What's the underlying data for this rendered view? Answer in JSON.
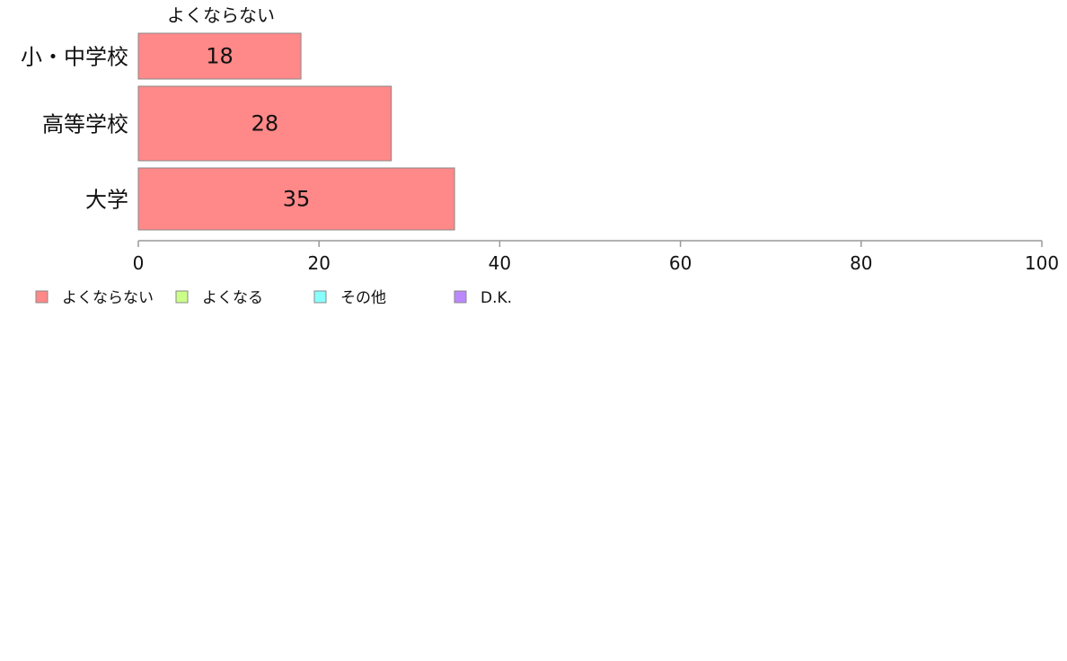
{
  "chart_data": {
    "type": "bar",
    "orientation": "horizontal",
    "stacked": true,
    "categories": [
      "小・中学校",
      "高等学校",
      "大学"
    ],
    "series": [
      {
        "name": "よくならない",
        "color": "#ff8888",
        "values": [
          18,
          28,
          35
        ]
      },
      {
        "name": "よくなる",
        "color": "#ccff88",
        "values": [
          0,
          0,
          0
        ]
      },
      {
        "name": "その他",
        "color": "#88ffff",
        "values": [
          0,
          0,
          0
        ]
      },
      {
        "name": "D.K.",
        "color": "#bb88ff",
        "values": [
          0,
          0,
          0
        ]
      }
    ],
    "series_header": "よくならない",
    "xlim": [
      0,
      100
    ],
    "xticks": [
      0,
      20,
      40,
      60,
      80,
      100
    ],
    "grid": false,
    "legend_position": "bottom",
    "axis_color": "#999999",
    "bar_edge_color": "#888888"
  }
}
